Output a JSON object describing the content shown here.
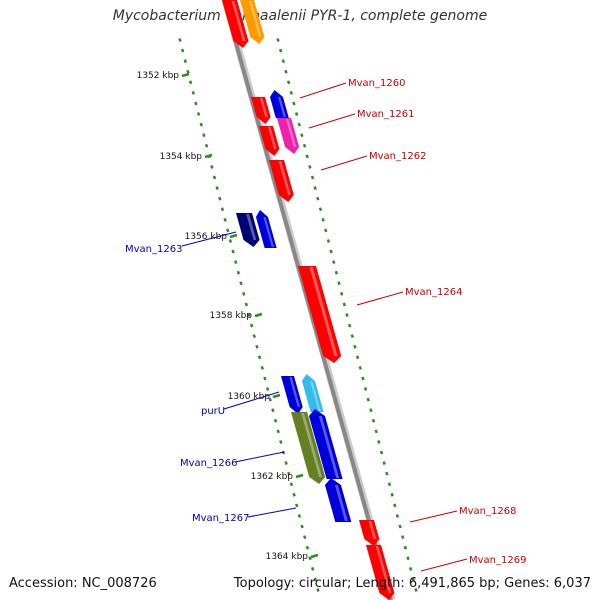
{
  "title": "Mycobacterium vanbaalenii PYR-1, complete genome",
  "footer": {
    "accession": "Accession: NC_008726",
    "summary": "Topology: circular; Length: 6,491,865 bp; Genes: 6,037"
  },
  "colors": {
    "backbone": "#8c8c8c",
    "ruler": "#2e8b22",
    "forward_label": "#cc0000",
    "reverse_label": "#0000bb"
  },
  "ticks": [
    {
      "label": "1352 kbp"
    },
    {
      "label": "1354 kbp"
    },
    {
      "label": "1356 kbp"
    },
    {
      "label": "1358 kbp"
    },
    {
      "label": "1360 kbp"
    },
    {
      "label": "1362 kbp"
    },
    {
      "label": "1364 kbp"
    }
  ],
  "genes": [
    {
      "label": "",
      "color": "#ff0000"
    },
    {
      "label": "",
      "color": "#ff9900"
    },
    {
      "label": "",
      "color": "#ff0000"
    },
    {
      "label": "Mvan_1260",
      "color": "#0000dd"
    },
    {
      "label": "",
      "color": "#ff0000"
    },
    {
      "label": "Mvan_1261",
      "color": "#ee22aa"
    },
    {
      "label": "Mvan_1262",
      "color": "#ff0000"
    },
    {
      "label": "Mvan_1263",
      "color": "#0000dd"
    },
    {
      "label": "",
      "color": "#000077"
    },
    {
      "label": "Mvan_1264",
      "color": "#ff0000"
    },
    {
      "label": "",
      "color": "#0000dd"
    },
    {
      "label": "purU",
      "color": "#33bbee"
    },
    {
      "label": "",
      "color": "#0000dd"
    },
    {
      "label": "Mvan_1266",
      "color": "#667f22"
    },
    {
      "label": "Mvan_1267",
      "color": "#0000dd"
    },
    {
      "label": "Mvan_1268",
      "color": "#ff0000"
    },
    {
      "label": "Mvan_1269",
      "color": "#ff0000"
    }
  ]
}
